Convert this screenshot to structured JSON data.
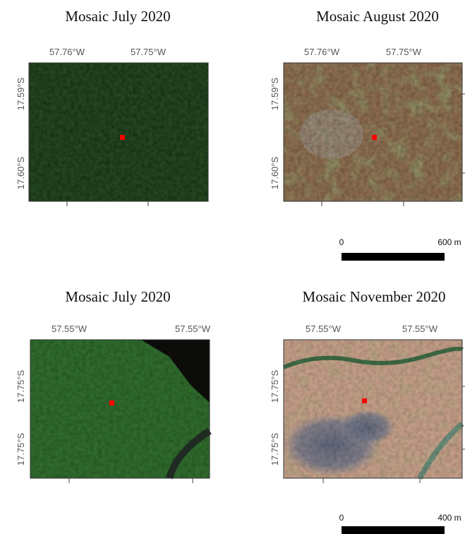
{
  "panels": [
    {
      "title": "Mosaic July 2020",
      "x_labels": [
        "57.76°W",
        "57.75°W"
      ],
      "y_labels": [
        "17.59°S",
        "17.60°S"
      ]
    },
    {
      "title": "Mosaic August 2020",
      "x_labels": [
        "57.76°W",
        "57.75°W"
      ],
      "y_labels": [
        "17.59°S",
        "17.60°S"
      ]
    },
    {
      "title": "Mosaic July 2020",
      "x_labels": [
        "57.55°W",
        "57.55°W"
      ],
      "y_labels": [
        "17.75°S",
        "17.75°S"
      ]
    },
    {
      "title": "Mosaic November 2020",
      "x_labels": [
        "57.55°W",
        "57.55°W"
      ],
      "y_labels": [
        "17.75°S",
        "17.75°S"
      ]
    }
  ],
  "scale_bars": [
    {
      "start": "0",
      "end": "600 m"
    },
    {
      "start": "0",
      "end": "400 m"
    }
  ]
}
